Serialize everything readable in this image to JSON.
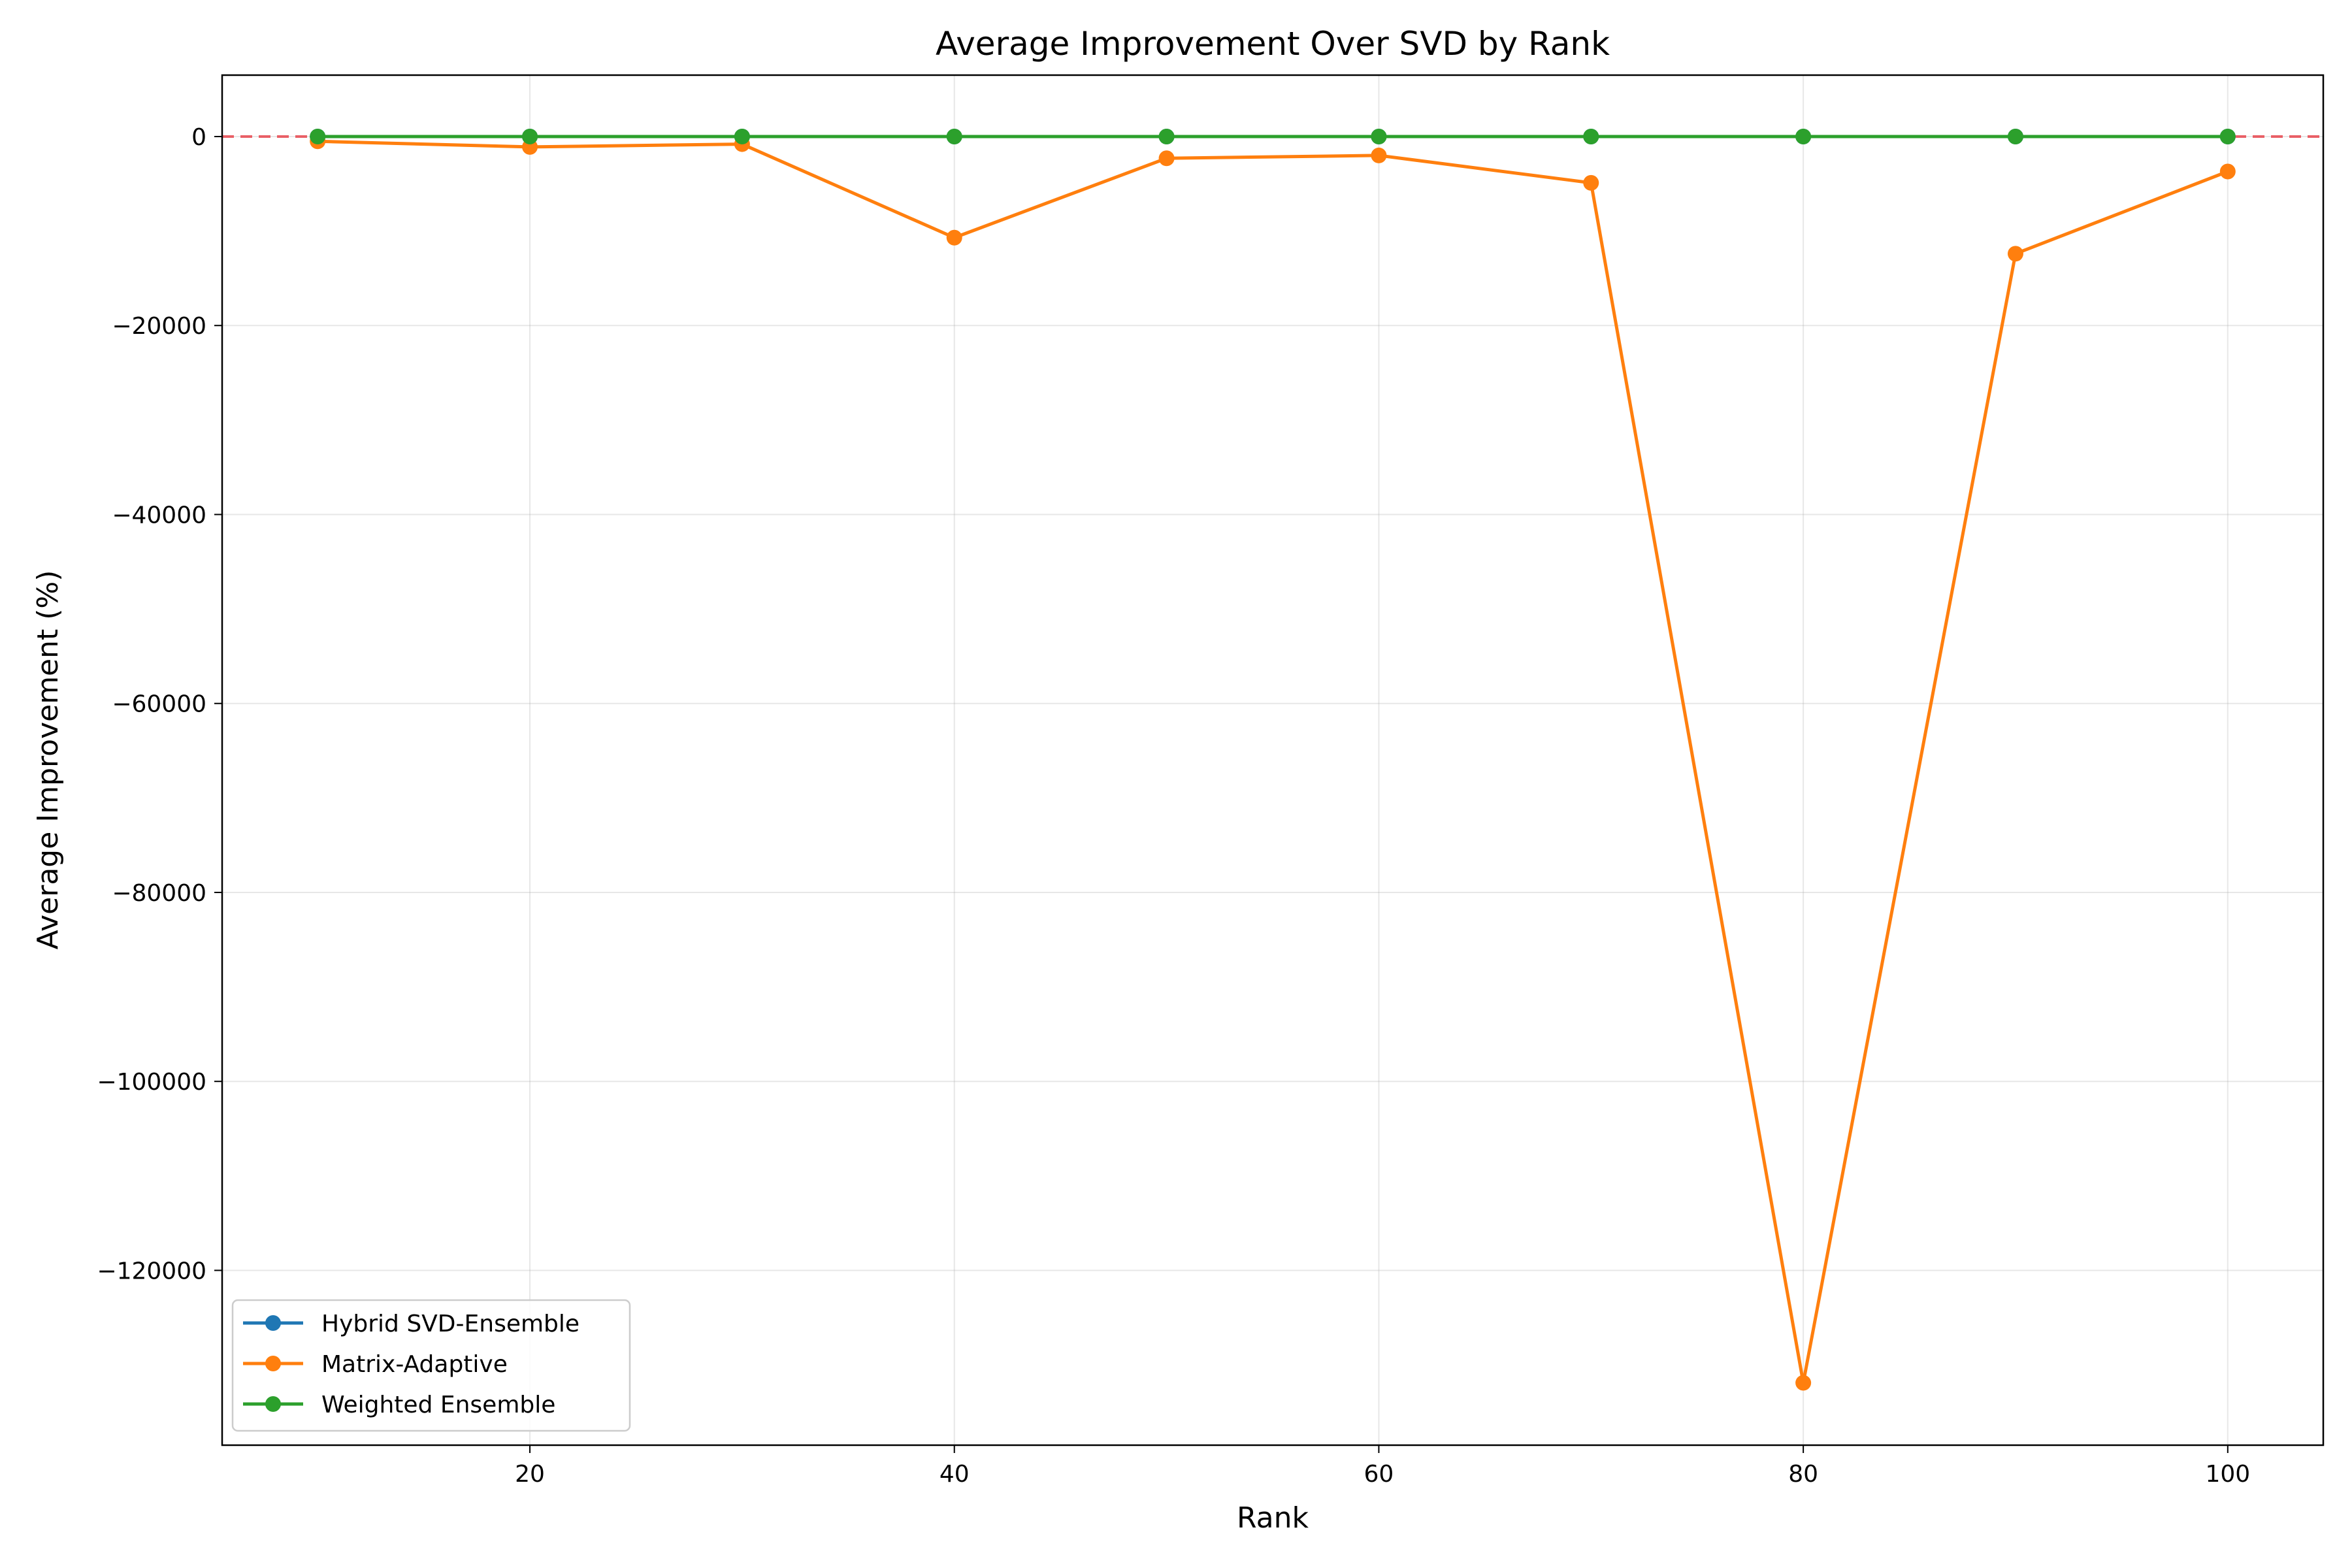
{
  "chart_data": {
    "type": "line",
    "title": "Average Improvement Over SVD by Rank",
    "xlabel": "Rank",
    "ylabel": "Average Improvement (%)",
    "x": [
      10,
      20,
      30,
      40,
      50,
      60,
      70,
      80,
      90,
      100
    ],
    "xlim": [
      5.5,
      104.5
    ],
    "ylim": [
      -138500,
      6500
    ],
    "xticks": [
      20,
      40,
      60,
      80,
      100
    ],
    "yticks": [
      0,
      -20000,
      -40000,
      -60000,
      -80000,
      -100000,
      -120000
    ],
    "xtick_labels": [
      "20",
      "40",
      "60",
      "80",
      "100"
    ],
    "ytick_labels": [
      "0",
      "−20000",
      "−40000",
      "−60000",
      "−80000",
      "−100000",
      "−120000"
    ],
    "grid": true,
    "legend_position": "lower-left",
    "reference_line": {
      "y": 0,
      "style": "dashed",
      "color": "#e8474f"
    },
    "series": [
      {
        "name": "Hybrid SVD-Ensemble",
        "color": "#1f77b4",
        "values": [
          0,
          0,
          0,
          0,
          0,
          0,
          0,
          0,
          0,
          0
        ]
      },
      {
        "name": "Matrix-Adaptive",
        "color": "#ff7f0e",
        "values": [
          -500,
          -1100,
          -800,
          -10700,
          -2300,
          -2000,
          -4900,
          -131900,
          -12400,
          -3700
        ]
      },
      {
        "name": "Weighted Ensemble",
        "color": "#2ca02c",
        "values": [
          0,
          0,
          0,
          0,
          0,
          0,
          0,
          0,
          0,
          0
        ]
      }
    ]
  }
}
